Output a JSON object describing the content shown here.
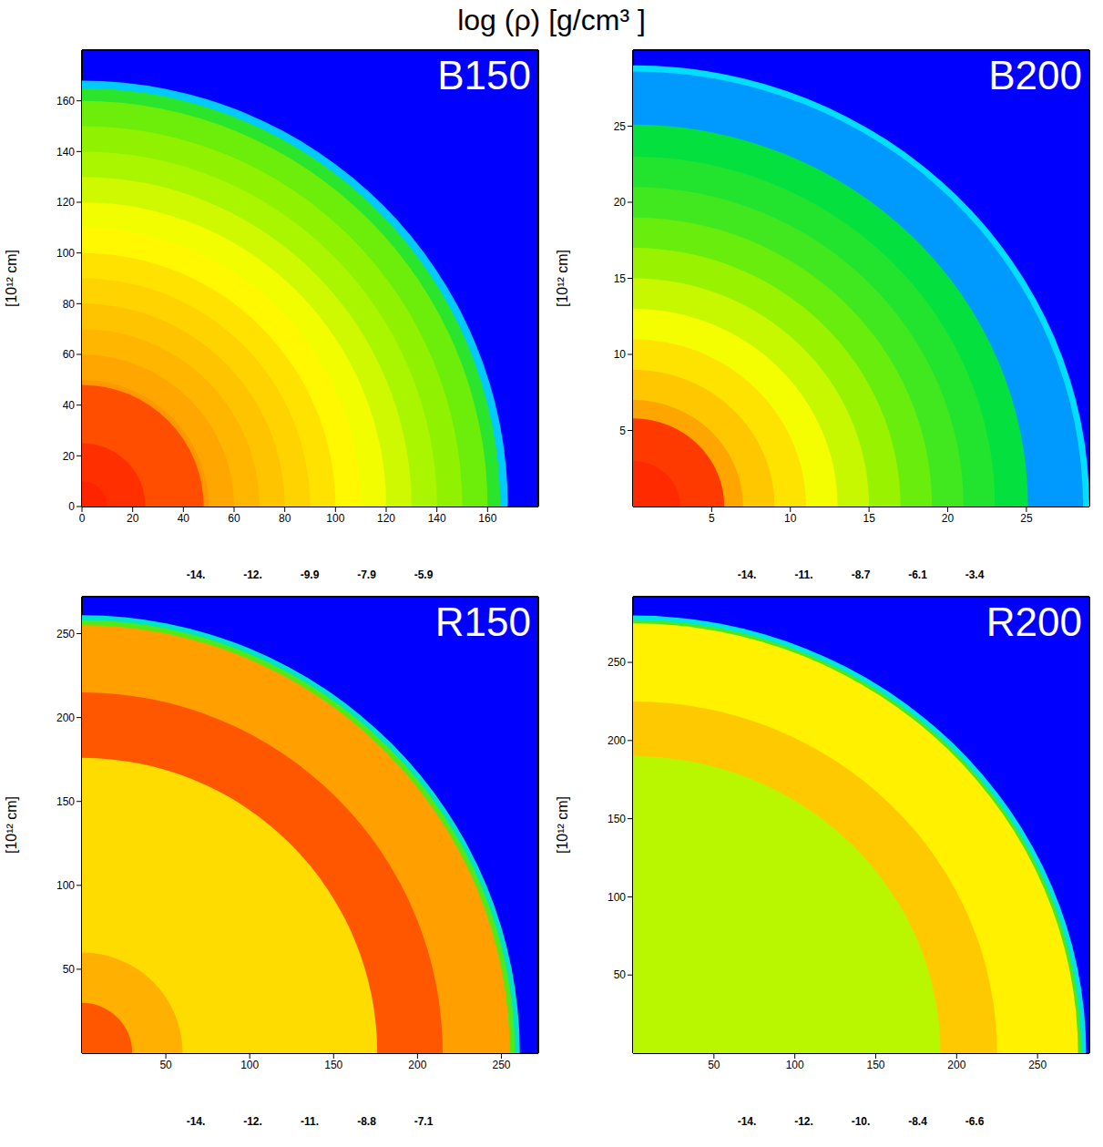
{
  "title": "log (ρ)  [g/cm³ ]",
  "chart_data": [
    {
      "type": "radial_map",
      "label": "B150",
      "y_label": "[10¹² cm]",
      "xlim": [
        0,
        180
      ],
      "ylim": [
        0,
        180
      ],
      "xticks": [
        0,
        20,
        40,
        60,
        80,
        100,
        120,
        140,
        160
      ],
      "yticks": [
        0,
        20,
        40,
        60,
        80,
        100,
        120,
        140,
        160
      ],
      "ambient": -14,
      "radius": [
        168,
        165,
        160,
        150,
        140,
        130,
        120,
        110,
        100,
        90,
        80,
        70,
        60,
        50,
        48,
        25,
        10
      ],
      "log_rho": [
        -12,
        -10.2,
        -9.7,
        -9.4,
        -9.2,
        -8.9,
        -8.6,
        -8.4,
        -8.1,
        -7.9,
        -7.7,
        -7.5,
        -7.3,
        -7.1,
        -6.4,
        -6.1,
        -6.0
      ],
      "colorbar": {
        "range": [
          -14,
          -5.9
        ],
        "ticks": [
          {
            "value": -14,
            "label": "-14."
          },
          {
            "value": -11.975,
            "label": "-12."
          },
          {
            "value": -9.95,
            "label": "-9.9"
          },
          {
            "value": -7.925,
            "label": "-7.9"
          },
          {
            "value": -5.9,
            "label": "-5.9"
          }
        ]
      }
    },
    {
      "type": "radial_map",
      "label": "B200",
      "y_label": "[10¹² cm]",
      "xlim": [
        0,
        29
      ],
      "ylim": [
        0,
        30
      ],
      "xticks": [
        5,
        10,
        15,
        20,
        25
      ],
      "yticks": [
        5,
        10,
        15,
        20,
        25
      ],
      "ambient": -14,
      "radius": [
        29,
        28.6,
        25.1,
        23,
        21,
        19,
        17,
        15,
        13,
        11,
        9,
        7,
        5.8,
        3
      ],
      "log_rho": [
        -11.2,
        -11.8,
        -9.4,
        -9.1,
        -8.8,
        -8.4,
        -7.9,
        -7.4,
        -6.9,
        -6.3,
        -5.8,
        -5.2,
        -3.8,
        -3.6
      ],
      "colorbar": {
        "range": [
          -14,
          -3.4
        ],
        "ticks": [
          {
            "value": -14,
            "label": "-14."
          },
          {
            "value": -11.35,
            "label": "-11."
          },
          -8.7,
          {
            "value": -6.05,
            "label": "-6.1"
          },
          -3.4
        ]
      }
    },
    {
      "type": "radial_map",
      "label": "R150",
      "y_label": "[10¹² cm]",
      "xlim": [
        0,
        272
      ],
      "ylim": [
        0,
        272
      ],
      "xticks": [
        50,
        100,
        150,
        200,
        250
      ],
      "yticks": [
        50,
        100,
        150,
        200,
        250
      ],
      "ambient": -14,
      "radius": [
        261,
        258,
        255,
        215,
        176,
        60,
        30
      ],
      "log_rho": [
        -11.8,
        -10.5,
        -8.2,
        -7.6,
        -8.9,
        -8.4,
        -7.6
      ],
      "colorbar": {
        "range": [
          -14,
          -7.1
        ],
        "ticks": [
          {
            "value": -14,
            "label": "-14."
          },
          {
            "value": -12.275,
            "label": "-12."
          },
          {
            "value": -10.55,
            "label": "-11."
          },
          {
            "value": -8.825,
            "label": "-8.8"
          },
          -7.1
        ]
      }
    },
    {
      "type": "radial_map",
      "label": "R200",
      "y_label": "[10¹² cm]",
      "xlim": [
        0,
        282
      ],
      "ylim": [
        0,
        292
      ],
      "xticks": [
        50,
        100,
        150,
        200,
        250
      ],
      "yticks": [
        50,
        100,
        150,
        200,
        250
      ],
      "ambient": -14,
      "radius": [
        280,
        277,
        275,
        225,
        190
      ],
      "log_rho": [
        -11.8,
        -10.3,
        -8.8,
        -8.3,
        -9.5
      ],
      "colorbar": {
        "range": [
          -14,
          -6.6
        ],
        "ticks": [
          {
            "value": -14,
            "label": "-14."
          },
          {
            "value": -12.15,
            "label": "-12."
          },
          {
            "value": -10.3,
            "label": "-10."
          },
          {
            "value": -8.45,
            "label": "-8.4"
          },
          -6.6
        ]
      }
    }
  ]
}
